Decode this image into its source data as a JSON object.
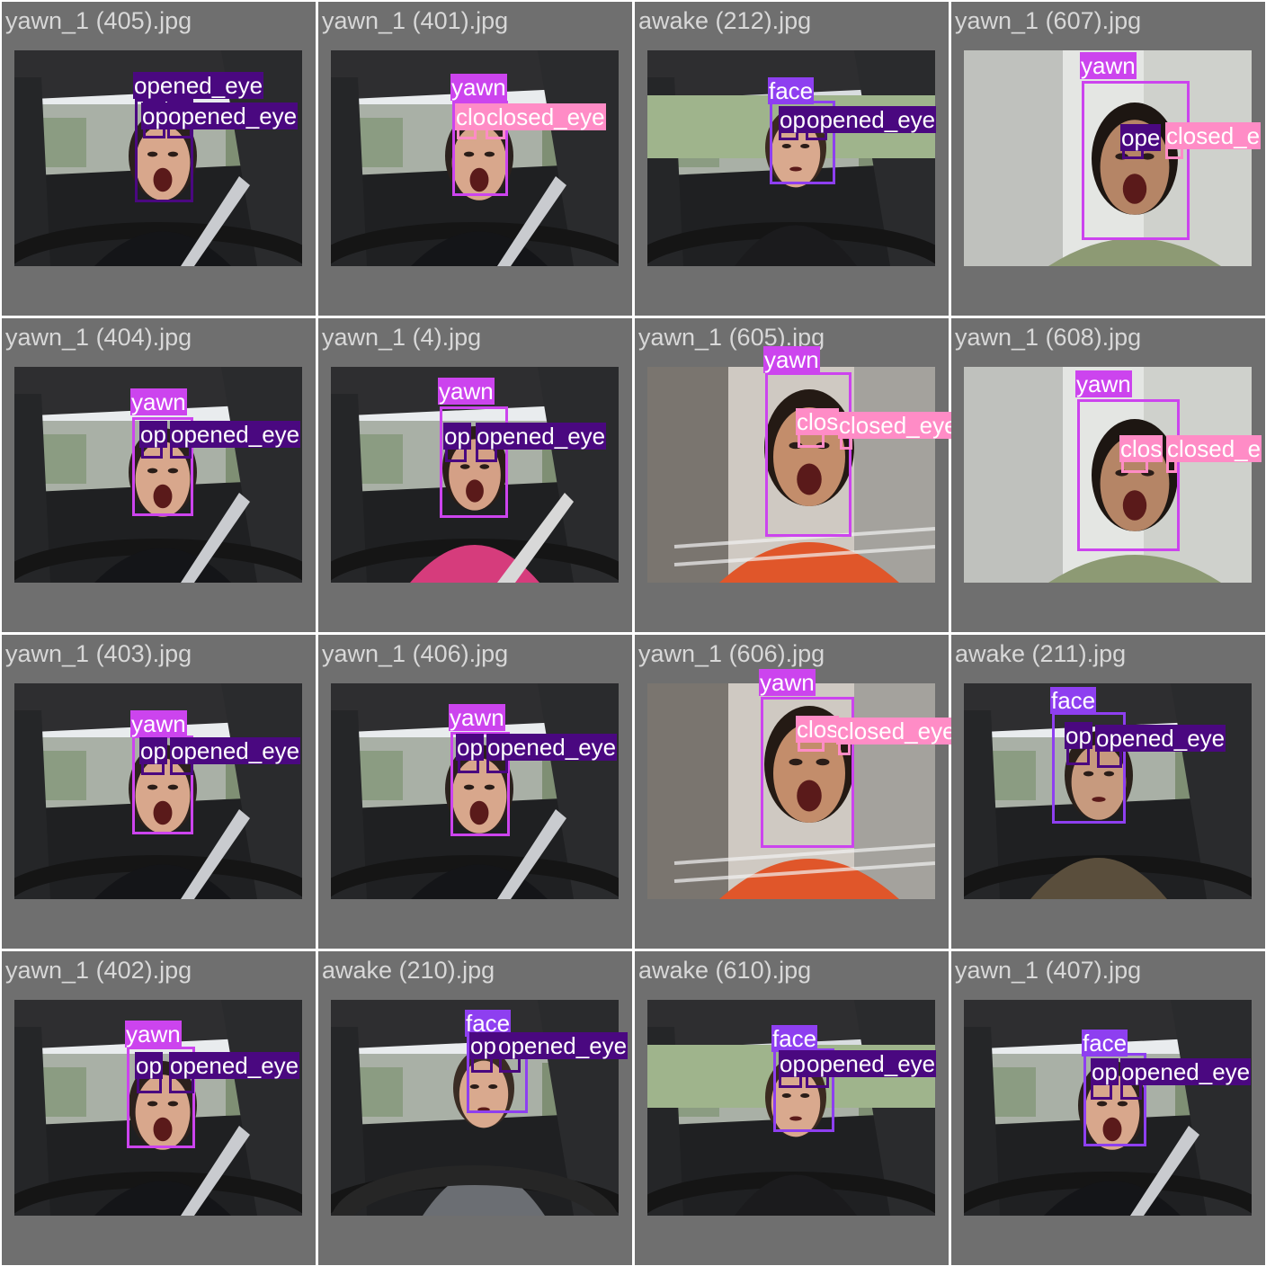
{
  "colors": {
    "background": "#6f6f6f",
    "filename_text": "#d8d8d8",
    "class_face": "#8e3ff0",
    "class_yawn": "#cc44ee",
    "class_opened_eye": "#4a0880",
    "class_closed_eye": "#ff8cc6"
  },
  "tiles": [
    {
      "filename": "yawn_1 (405).jpg",
      "scene": "woman",
      "detections": [
        {
          "label": "opened_eye"
        },
        {
          "label": "op"
        },
        {
          "label": "opened_eye"
        }
      ]
    },
    {
      "filename": "yawn_1 (401).jpg",
      "scene": "woman",
      "detections": [
        {
          "label": "yawn"
        },
        {
          "label": "clo"
        },
        {
          "label": "closed_eye"
        }
      ]
    },
    {
      "filename": "awake (212).jpg",
      "scene": "woman2",
      "detections": [
        {
          "label": "face"
        },
        {
          "label": "op"
        },
        {
          "label": "opened_eye"
        }
      ]
    },
    {
      "filename": "yawn_1 (607).jpg",
      "scene": "man_green",
      "detections": [
        {
          "label": "yawn"
        },
        {
          "label": "ope"
        },
        {
          "label": "closed_e"
        }
      ]
    },
    {
      "filename": "yawn_1 (404).jpg",
      "scene": "woman",
      "detections": [
        {
          "label": "yawn"
        },
        {
          "label": "op"
        },
        {
          "label": "opened_eye"
        }
      ]
    },
    {
      "filename": "yawn_1 (4).jpg",
      "scene": "woman_pink",
      "detections": [
        {
          "label": "yawn"
        },
        {
          "label": "op"
        },
        {
          "label": "opened_eye"
        }
      ]
    },
    {
      "filename": "yawn_1 (605).jpg",
      "scene": "man_orange",
      "detections": [
        {
          "label": "yawn"
        },
        {
          "label": "clos"
        },
        {
          "label": "closed_eye"
        }
      ]
    },
    {
      "filename": "yawn_1 (608).jpg",
      "scene": "man_green",
      "detections": [
        {
          "label": "yawn"
        },
        {
          "label": "clos"
        },
        {
          "label": "closed_e"
        }
      ]
    },
    {
      "filename": "yawn_1 (403).jpg",
      "scene": "woman",
      "detections": [
        {
          "label": "yawn"
        },
        {
          "label": "op"
        },
        {
          "label": "opened_eye"
        }
      ]
    },
    {
      "filename": "yawn_1 (406).jpg",
      "scene": "woman",
      "detections": [
        {
          "label": "yawn"
        },
        {
          "label": "op"
        },
        {
          "label": "opened_eye"
        }
      ]
    },
    {
      "filename": "yawn_1 (606).jpg",
      "scene": "man_orange",
      "detections": [
        {
          "label": "yawn"
        },
        {
          "label": "clos"
        },
        {
          "label": "closed_eye"
        }
      ]
    },
    {
      "filename": "awake (211).jpg",
      "scene": "man_brown",
      "detections": [
        {
          "label": "face"
        },
        {
          "label": "op"
        },
        {
          "label": "opened_eye"
        }
      ]
    },
    {
      "filename": "yawn_1 (402).jpg",
      "scene": "woman",
      "detections": [
        {
          "label": "yawn"
        },
        {
          "label": "op"
        },
        {
          "label": "opened_eye"
        }
      ]
    },
    {
      "filename": "awake (210).jpg",
      "scene": "woman_grey",
      "detections": [
        {
          "label": "face"
        },
        {
          "label": "op"
        },
        {
          "label": "opened_eye"
        }
      ]
    },
    {
      "filename": "awake (610).jpg",
      "scene": "woman2",
      "detections": [
        {
          "label": "face"
        },
        {
          "label": "op"
        },
        {
          "label": "opened_eye"
        }
      ]
    },
    {
      "filename": "yawn_1 (407).jpg",
      "scene": "woman",
      "detections": [
        {
          "label": "face"
        },
        {
          "label": "op"
        },
        {
          "label": "opened_eye"
        }
      ]
    }
  ]
}
